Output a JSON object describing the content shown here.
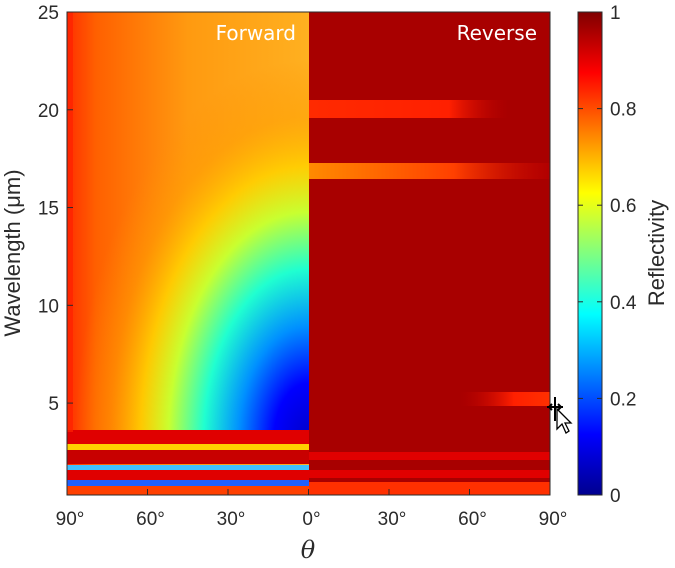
{
  "colors": {
    "colormap": [
      "#00008f",
      "#0000ff",
      "#0080ff",
      "#00ffff",
      "#80ff80",
      "#ffff00",
      "#ff8000",
      "#ff0000",
      "#800000"
    ],
    "axis": "#2b2b2b"
  },
  "chart_data": {
    "type": "heatmap",
    "title": "",
    "xlabel": "θ",
    "ylabel": "Wavelength (μm)",
    "colorbar_label": "Reflectivity",
    "panels": [
      {
        "name": "Forward",
        "x_range_deg": [
          90,
          0
        ]
      },
      {
        "name": "Reverse",
        "x_range_deg": [
          0,
          90
        ]
      }
    ],
    "x_tick_labels": [
      "90°",
      "60°",
      "30°",
      "0°",
      "30°",
      "60°",
      "90°"
    ],
    "y_ticks": [
      5,
      10,
      15,
      20,
      25
    ],
    "y_tick_labels": [
      "5",
      "10",
      "15",
      "20",
      "25"
    ],
    "ylim": [
      0.3,
      25
    ],
    "clim": [
      0,
      1
    ],
    "colorbar_ticks": [
      0,
      0.2,
      0.4,
      0.6,
      0.8,
      1
    ],
    "colorbar_tick_labels": [
      "0",
      "0.2",
      "0.4",
      "0.6",
      "0.8",
      "1"
    ],
    "forward_reflectivity_profile_at_0deg": {
      "wavelength_um": [
        1.0,
        1.5,
        2.2,
        3.0,
        3.5,
        4.3,
        5.0,
        7.0,
        10.0,
        13.0,
        16.0,
        20.0,
        23.0,
        25.0
      ],
      "reflectivity": [
        0.9,
        0.5,
        0.95,
        0.9,
        0.4,
        0.02,
        0.05,
        0.22,
        0.45,
        0.6,
        0.68,
        0.75,
        0.8,
        0.82
      ]
    },
    "reverse_features": [
      {
        "wavelength_um": 16.8,
        "reflectivity": 0.82,
        "theta_range_deg": [
          0,
          90
        ]
      },
      {
        "wavelength_um": 19.9,
        "reflectivity": 0.9,
        "theta_range_deg": [
          0,
          70
        ]
      },
      {
        "wavelength_um": 5.0,
        "reflectivity": 0.9,
        "theta_range_deg": [
          50,
          90
        ]
      }
    ]
  }
}
